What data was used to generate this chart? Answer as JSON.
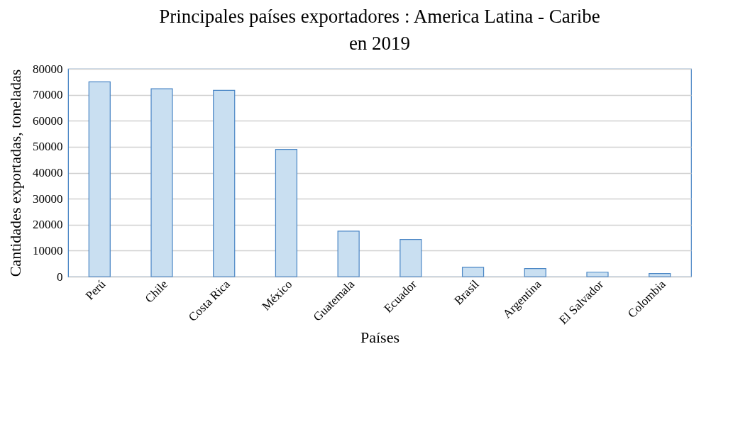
{
  "chart_data": {
    "type": "bar",
    "title": [
      "Principales países exportadores : America Latina - Caribe",
      "en 2019"
    ],
    "xlabel": "Países",
    "ylabel": "Cantidades exportadas, toneladas",
    "categories": [
      "Perú",
      "Chile",
      "Costa Rica",
      "México",
      "Guatemala",
      "Ecuador",
      "Brasil",
      "Argentina",
      "El Salvador",
      "Colombia"
    ],
    "values": [
      75000,
      72300,
      71700,
      49000,
      17500,
      14300,
      3600,
      3100,
      1700,
      1200
    ],
    "color": "#c9dff1",
    "ylim": [
      0,
      80000
    ],
    "yticks": [
      0,
      10000,
      20000,
      30000,
      40000,
      50000,
      60000,
      70000,
      80000
    ],
    "grid": "y"
  }
}
